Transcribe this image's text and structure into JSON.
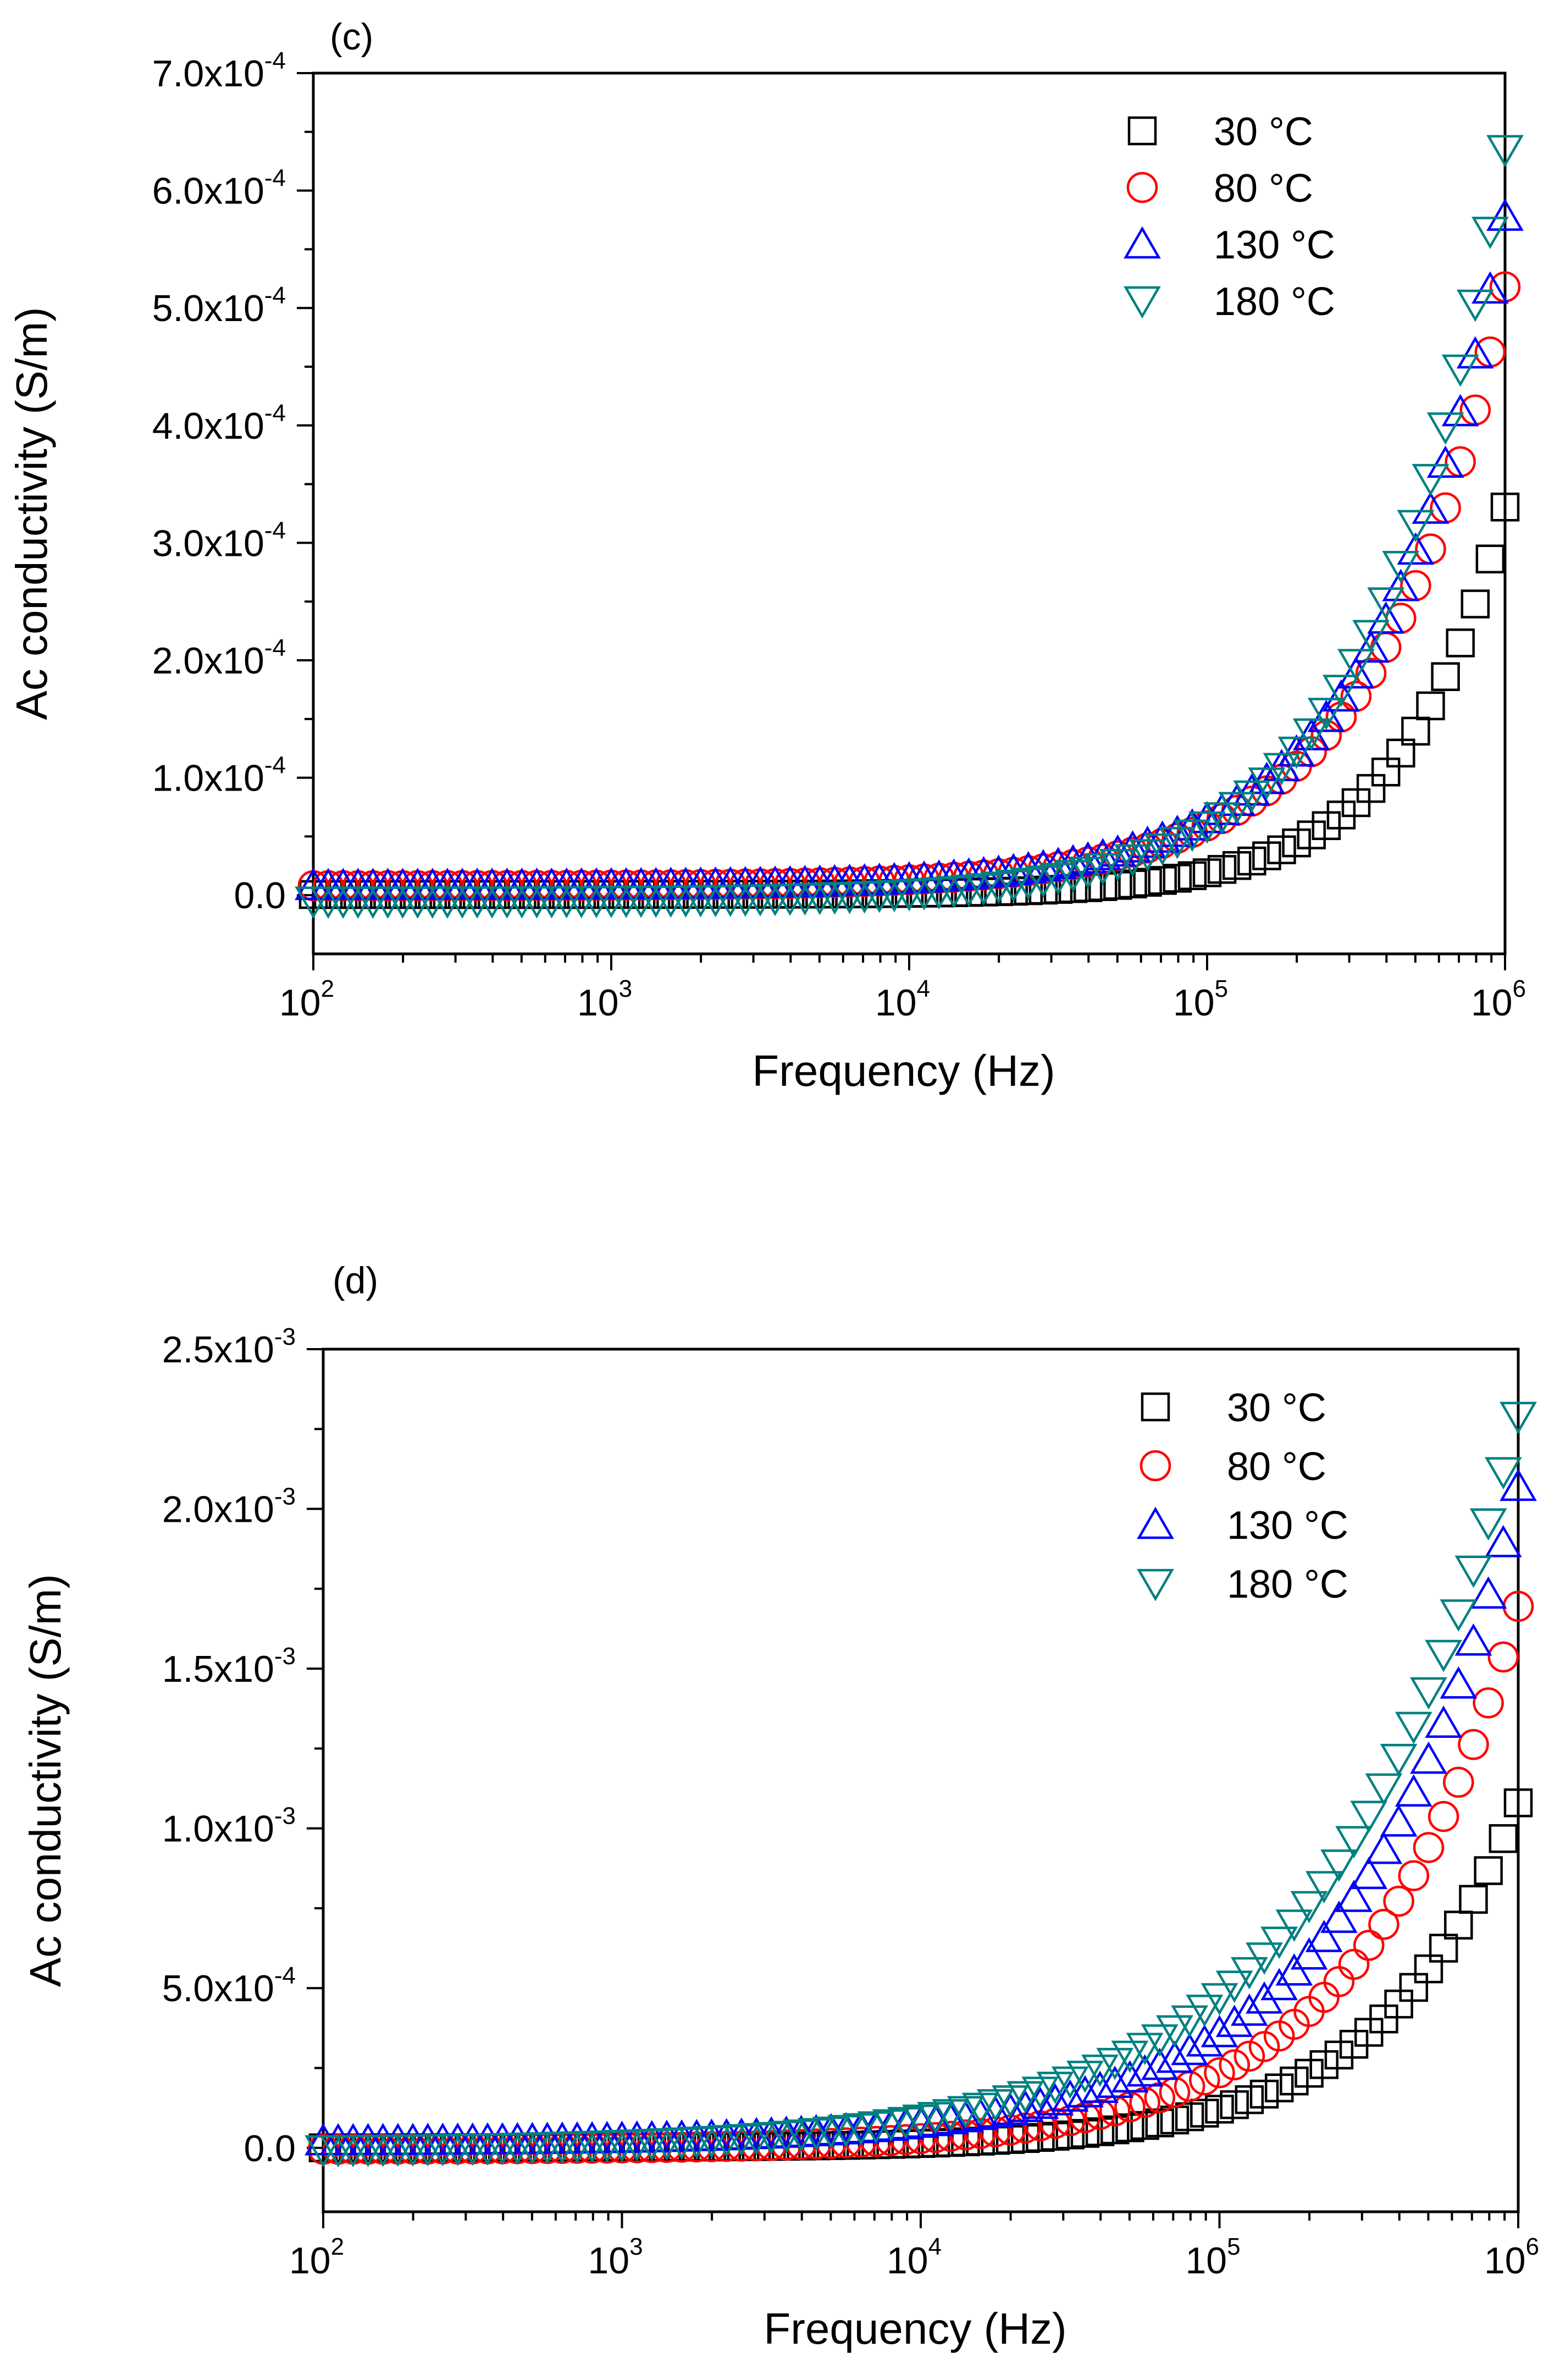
{
  "chart_data": [
    {
      "panel_label": "(c)",
      "type": "scatter",
      "xscale": "log",
      "xlim": [
        100,
        1000000
      ],
      "ylim": [
        -5e-05,
        0.0007
      ],
      "xlabel": "Frequency (Hz)",
      "ylabel": "Ac conductivity (S/m)",
      "x_ticks": [
        {
          "base": "10",
          "exp": "2",
          "value": 100
        },
        {
          "base": "10",
          "exp": "3",
          "value": 1000
        },
        {
          "base": "10",
          "exp": "4",
          "value": 10000
        },
        {
          "base": "10",
          "exp": "5",
          "value": 100000
        },
        {
          "base": "10",
          "exp": "6",
          "value": 1000000
        }
      ],
      "y_ticks": [
        {
          "label": "0.0",
          "exp": "",
          "value": 0
        },
        {
          "label": "1.0x10",
          "exp": "-4",
          "value": 0.0001
        },
        {
          "label": "2.0x10",
          "exp": "-4",
          "value": 0.0002
        },
        {
          "label": "3.0x10",
          "exp": "-4",
          "value": 0.0003
        },
        {
          "label": "4.0x10",
          "exp": "-4",
          "value": 0.0004
        },
        {
          "label": "5.0x10",
          "exp": "-4",
          "value": 0.0005
        },
        {
          "label": "6.0x10",
          "exp": "-4",
          "value": 0.0006
        },
        {
          "label": "7.0x10",
          "exp": "-4",
          "value": 0.0007
        }
      ],
      "legend_position": "top-right",
      "series": [
        {
          "name": "30 °C",
          "marker": "square",
          "color": "#000000",
          "model": {
            "a": 5e-07,
            "c": 0.00033,
            "n": 1.25
          }
        },
        {
          "name": "80 °C",
          "marker": "circle",
          "color": "#ff0000",
          "model": {
            "a": 8e-06,
            "c": 0.00051,
            "n": 1.0
          }
        },
        {
          "name": "130 °C",
          "marker": "triangle-up",
          "color": "#0000ff",
          "model": {
            "a": 8e-06,
            "c": 0.00057,
            "n": 1.0
          }
        },
        {
          "name": "180 °C",
          "marker": "triangle-down",
          "color": "#008080",
          "model": {
            "a": -5e-06,
            "c": 0.00064,
            "n": 1.0
          }
        }
      ]
    },
    {
      "panel_label": "(d)",
      "type": "scatter",
      "xscale": "log",
      "xlim": [
        100,
        1000000
      ],
      "ylim": [
        -0.0002,
        0.0025
      ],
      "xlabel": "Frequency (Hz)",
      "ylabel": "Ac conductivity (S/m)",
      "x_ticks": [
        {
          "base": "10",
          "exp": "2",
          "value": 100
        },
        {
          "base": "10",
          "exp": "3",
          "value": 1000
        },
        {
          "base": "10",
          "exp": "4",
          "value": 10000
        },
        {
          "base": "10",
          "exp": "5",
          "value": 100000
        },
        {
          "base": "10",
          "exp": "6",
          "value": 1000000
        }
      ],
      "y_ticks": [
        {
          "label": "0.0",
          "exp": "",
          "value": 0
        },
        {
          "label": "5.0x10",
          "exp": "-4",
          "value": 0.0005
        },
        {
          "label": "1.0x10",
          "exp": "-3",
          "value": 0.001
        },
        {
          "label": "1.5x10",
          "exp": "-3",
          "value": 0.0015
        },
        {
          "label": "2.0x10",
          "exp": "-3",
          "value": 0.002
        },
        {
          "label": "2.5x10",
          "exp": "-3",
          "value": 0.0025
        }
      ],
      "legend_position": "top-right",
      "series": [
        {
          "name": "30 °C",
          "marker": "square",
          "color": "#000000",
          "model": {
            "a": 0.0,
            "c": 0.00108,
            "n": 0.95
          }
        },
        {
          "name": "80 °C",
          "marker": "circle",
          "color": "#ff0000",
          "model": {
            "a": -5e-06,
            "c": 0.0017,
            "n": 0.85
          }
        },
        {
          "name": "130 °C",
          "marker": "triangle-up",
          "color": "#0000ff",
          "model": {
            "a": 2e-05,
            "c": 0.00205,
            "n": 0.78
          }
        },
        {
          "name": "180 °C",
          "marker": "triangle-down",
          "color": "#008080",
          "model": {
            "a": -1e-05,
            "c": 0.0023,
            "n": 0.68
          }
        }
      ]
    }
  ]
}
